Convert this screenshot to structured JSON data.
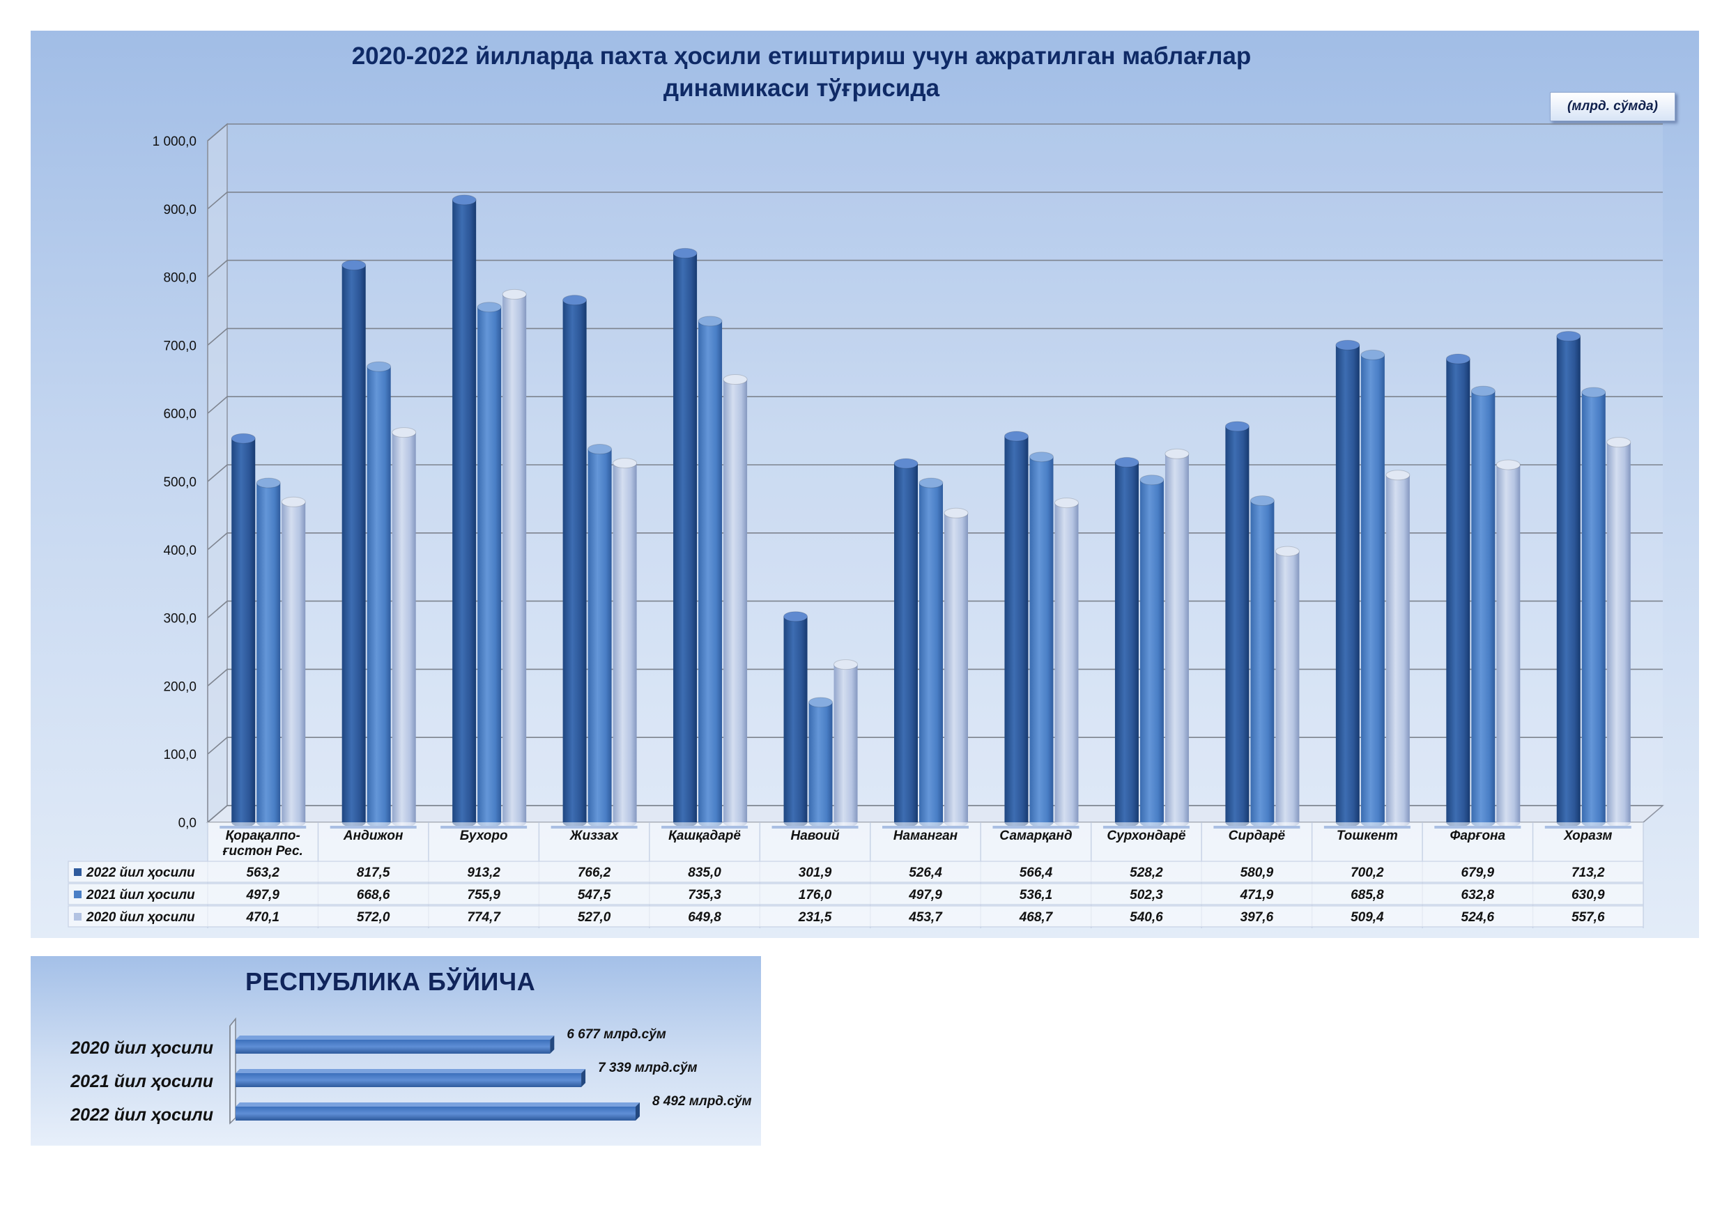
{
  "title_line1": "2020-2022 йилларда пахта ҳосили етиштириш учун ажратилган маблағлар",
  "title_line2": "динамикаси тўғрисида",
  "unit_label": "(млрд. сўмда)",
  "colors": {
    "s2022": "#2f5b9d",
    "s2021": "#4a7fc6",
    "s2020": "#b3c3e2"
  },
  "chart_data": [
    {
      "type": "bar",
      "categories": [
        [
          "Қорақалпо-",
          "ғистон Рес."
        ],
        [
          "Андижон"
        ],
        [
          "Бухоро"
        ],
        [
          "Жиззах"
        ],
        [
          "Қашқадарё"
        ],
        [
          "Навоий"
        ],
        [
          "Наманган"
        ],
        [
          "Самарқанд"
        ],
        [
          "Сурхондарё"
        ],
        [
          "Сирдарё"
        ],
        [
          "Тошкент"
        ],
        [
          "Фарғона"
        ],
        [
          "Хоразм"
        ]
      ],
      "series": [
        {
          "name": "2022 йил ҳосили",
          "values": [
            563.2,
            817.5,
            913.2,
            766.2,
            835.0,
            301.9,
            526.4,
            566.4,
            528.2,
            580.9,
            700.2,
            679.9,
            713.2
          ],
          "labels": [
            "563,2",
            "817,5",
            "913,2",
            "766,2",
            "835,0",
            "301,9",
            "526,4",
            "566,4",
            "528,2",
            "580,9",
            "700,2",
            "679,9",
            "713,2"
          ]
        },
        {
          "name": "2021 йил ҳосили",
          "values": [
            497.9,
            668.6,
            755.9,
            547.5,
            735.3,
            176.0,
            497.9,
            536.1,
            502.3,
            471.9,
            685.8,
            632.8,
            630.9
          ],
          "labels": [
            "497,9",
            "668,6",
            "755,9",
            "547,5",
            "735,3",
            "176,0",
            "497,9",
            "536,1",
            "502,3",
            "471,9",
            "685,8",
            "632,8",
            "630,9"
          ]
        },
        {
          "name": "2020 йил ҳосили",
          "values": [
            470.1,
            572.0,
            774.7,
            527.0,
            649.8,
            231.5,
            453.7,
            468.7,
            540.6,
            397.6,
            509.4,
            524.6,
            557.6
          ],
          "labels": [
            "470,1",
            "572,0",
            "774,7",
            "527,0",
            "649,8",
            "231,5",
            "453,7",
            "468,7",
            "540,6",
            "397,6",
            "509,4",
            "524,6",
            "557,6"
          ]
        }
      ],
      "ylim": [
        0,
        1000
      ],
      "yticks": [
        0,
        100,
        200,
        300,
        400,
        500,
        600,
        700,
        800,
        900,
        1000
      ],
      "ytick_labels": [
        "0,0",
        "100,0",
        "200,0",
        "300,0",
        "400,0",
        "500,0",
        "600,0",
        "700,0",
        "800,0",
        "900,0",
        "1 000,0"
      ],
      "grid": true,
      "data_table": true
    },
    {
      "type": "bar",
      "orientation": "horizontal",
      "title": "РЕСПУБЛИКА БЎЙИЧА",
      "categories": [
        "2020 йил ҳосили",
        "2021 йил ҳосили",
        "2022 йил ҳосили"
      ],
      "values": [
        6677,
        7339,
        8492
      ],
      "labels": [
        "6 677 млрд.сўм",
        "7 339 млрд.сўм",
        "8 492 млрд.сўм"
      ]
    }
  ]
}
